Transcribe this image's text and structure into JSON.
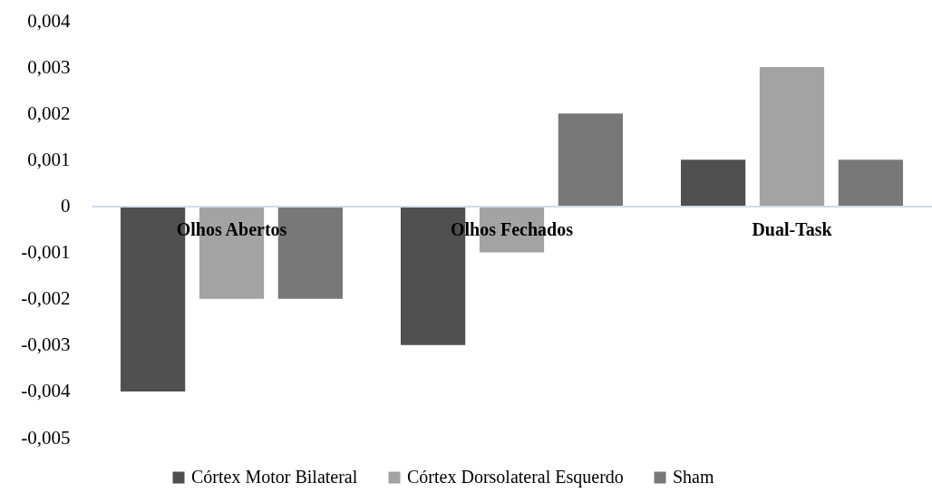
{
  "chart_data": {
    "type": "bar",
    "categories": [
      "Olhos Abertos",
      "Olhos Fechados",
      "Dual-Task"
    ],
    "series": [
      {
        "name": "Córtex Motor Bilateral",
        "color": "#505050",
        "values": [
          -0.004,
          -0.003,
          0.001
        ]
      },
      {
        "name": "Córtex Dorsolateral Esquerdo",
        "color": "#a3a3a3",
        "values": [
          -0.002,
          -0.001,
          0.003
        ]
      },
      {
        "name": "Sham",
        "color": "#787878",
        "values": [
          -0.002,
          0.002,
          0.001
        ]
      }
    ],
    "ylim": [
      -0.005,
      0.004
    ],
    "yticks": [
      {
        "value": -0.005,
        "label": "-0,005"
      },
      {
        "value": -0.004,
        "label": "-0,004"
      },
      {
        "value": -0.003,
        "label": "-0,003"
      },
      {
        "value": -0.002,
        "label": "-0,002"
      },
      {
        "value": -0.001,
        "label": "-0,001"
      },
      0,
      {
        "value": 0.001,
        "label": "0,001"
      },
      {
        "value": 0.002,
        "label": "0,002"
      },
      {
        "value": 0.003,
        "label": "0,003"
      },
      {
        "value": 0.004,
        "label": "0,004"
      }
    ],
    "grid": false,
    "legend": "bottom"
  }
}
